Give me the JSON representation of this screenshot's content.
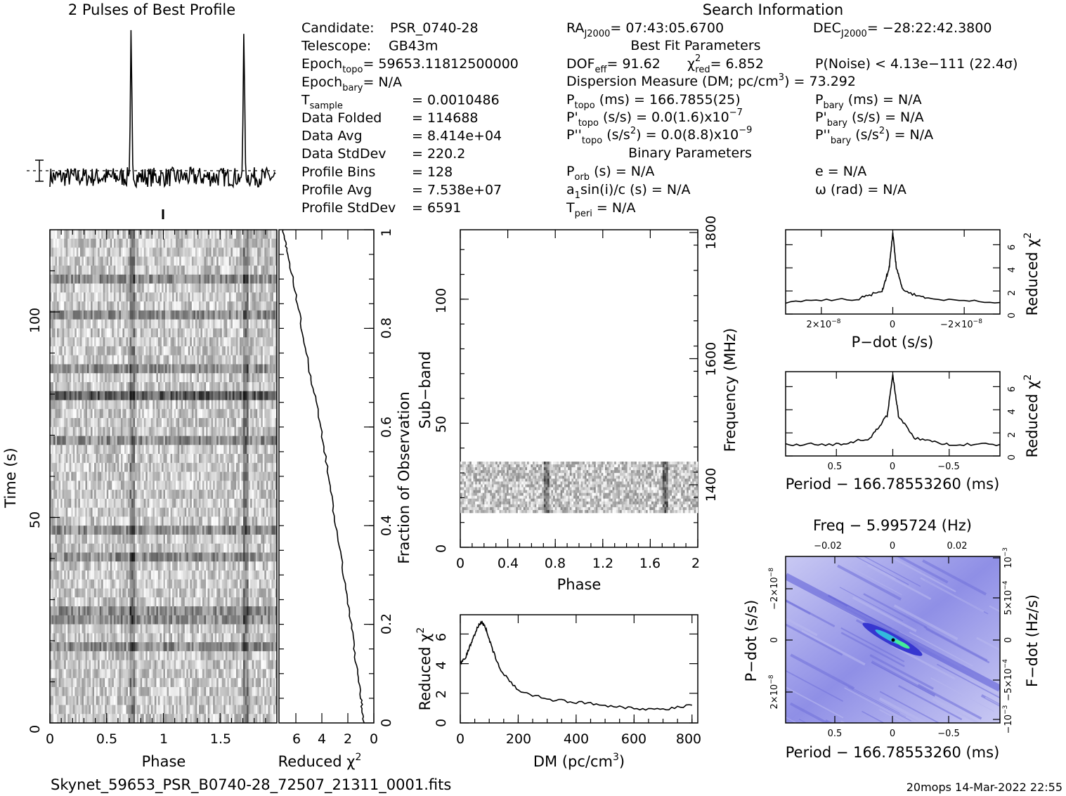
{
  "title_profile": "2 Pulses of Best Profile",
  "title_search": "Search Information",
  "footer_file": "Skynet_59653_PSR_B0740-28_72507_21311_0001.fits",
  "footer_stamp": "20mops 14-Mar-2022 22:55",
  "info_left": [
    {
      "k": "Candidate:",
      "v": "PSR_0740-28"
    },
    {
      "k": "Telescope:",
      "v": "GB43m"
    },
    {
      "k": "Epoch",
      "sub": "topo",
      "v": "= 59653.11812500000"
    },
    {
      "k": "Epoch",
      "sub": "bary",
      "v": "= N/A"
    },
    {
      "k": "T",
      "sub": "sample",
      "v": "=   0.0010486"
    },
    {
      "k": "Data Folded",
      "v": "=   114688"
    },
    {
      "k": "Data Avg",
      "v": "=   8.414e+04"
    },
    {
      "k": "Data StdDev",
      "v": "=   220.2"
    },
    {
      "k": "Profile Bins",
      "v": "=   128"
    },
    {
      "k": "Profile Avg",
      "v": "=   7.538e+07"
    },
    {
      "k": "Profile StdDev",
      "v": "=   6591"
    }
  ],
  "info_mid": {
    "ra": "= 07:43:05.6700",
    "best_fit_header": "Best Fit Parameters",
    "dof": "DOF",
    "dof_sub": "eff",
    "dof_val": "= 91.62",
    "chi": "χ",
    "chi_sub": "red",
    "chi_val": "= 6.852",
    "pnoise": "P(Noise) < 4.13e−111   (22.4σ)",
    "dm": "Dispersion Measure (DM; pc/cm",
    "dm_val": ") = 73.292",
    "ptopo_val": "(ms) =   166.7855(25)",
    "pdot_val": "(s/s) = 0.0(1.6)x10",
    "pdot_exp": "−7",
    "pddot_val": "(s/s",
    "pddot_val2": ") = 0.0(8.8)x10",
    "pddot_exp": "−9",
    "binary_header": "Binary Parameters",
    "porb": "(s) = N/A",
    "a1": "a",
    "a1_val": "sin(i)/c (s) = N/A",
    "tperi": "= N/A"
  },
  "info_right": {
    "dec": "= −28:22:42.3800",
    "pbary": "(ms) = N/A",
    "pbary_dot": "(s/s) = N/A",
    "pbary_ddot": "(s/s",
    "pbary_ddot2": ") = N/A",
    "e": "e = N/A",
    "omega": "ω (rad) = N/A"
  },
  "labels": {
    "time_s": "Time (s)",
    "phase": "Phase",
    "reduced": "Reduced χ",
    "fraction": "Fraction of Observation",
    "subband": "Sub−band",
    "frequency": "Frequency (MHz)",
    "dm_axis": "DM (pc/cm",
    "pdot_axis": "P−dot (s/s)",
    "period_axis": "Period − 166.78553260 (ms)",
    "freq_axis": "Freq − 5.995724 (Hz)",
    "fdot_axis": "F−dot (Hz/s)"
  },
  "ticks": {
    "time_y": [
      "0",
      "50",
      "100"
    ],
    "phase_x": [
      "0",
      "0.5",
      "1",
      "1.5"
    ],
    "chi_x": [
      "6",
      "4",
      "2",
      "0"
    ],
    "fraction_y": [
      "0",
      "0.2",
      "0.4",
      "0.6",
      "0.8",
      "1"
    ],
    "subband_y": [
      "0",
      "50",
      "100"
    ],
    "freq_y": [
      "1400",
      "1600",
      "1800"
    ],
    "subphase_x": [
      "0",
      "0.4",
      "0.8",
      "1.2",
      "1.6",
      "2"
    ],
    "dm_y": [
      "0",
      "2",
      "4",
      "6"
    ],
    "dm_x": [
      "0",
      "200",
      "400",
      "600",
      "800"
    ],
    "pdot_chi_y": [
      "0",
      "2",
      "4",
      "6"
    ],
    "pdot_x": [
      "2×10",
      "0",
      "−2×10"
    ],
    "period_x": [
      "0.5",
      "0",
      "−0.5"
    ],
    "freq_x": [
      "−0.02",
      "0",
      "0.02"
    ],
    "ppdot_y": [
      "−2×10",
      "0",
      "2×10"
    ],
    "fdot_y": [
      "10",
      "5×10",
      "0",
      "−5×10",
      "−10"
    ]
  },
  "chart_data": [
    {
      "type": "line",
      "title": "2 Pulses of Best Profile",
      "xlabel": "",
      "ylabel": "",
      "description_free": true,
      "x": [
        0.0,
        0.5,
        0.7,
        0.72,
        0.74,
        1.0,
        1.5,
        1.7,
        1.72,
        1.74,
        2.0
      ],
      "y": [
        0.05,
        0.05,
        0.1,
        1.0,
        0.1,
        0.05,
        0.05,
        0.1,
        1.0,
        0.1,
        0.05
      ],
      "ylim": [
        0,
        1
      ]
    },
    {
      "type": "line",
      "xlabel": "DM (pc/cm3)",
      "ylabel": "Reduced χ2",
      "x": [
        0,
        20,
        40,
        60,
        75,
        90,
        110,
        140,
        200,
        300,
        400,
        500,
        600,
        700,
        800
      ],
      "y": [
        4.0,
        4.5,
        5.5,
        6.5,
        6.8,
        6.3,
        5.0,
        3.5,
        2.2,
        1.6,
        1.4,
        1.2,
        1.0,
        0.9,
        1.2
      ],
      "xlim": [
        0,
        820
      ],
      "ylim": [
        0,
        7.3
      ]
    },
    {
      "type": "line",
      "xlabel": "P-dot (s/s)",
      "ylabel": "Reduced χ2",
      "x": [
        3e-08,
        1e-08,
        3e-09,
        1e-09,
        0,
        -1e-09,
        -3e-09,
        -1e-08,
        -3e-08
      ],
      "y": [
        1.0,
        1.3,
        2.0,
        4.0,
        7.0,
        4.0,
        2.0,
        1.3,
        1.0
      ],
      "xlim": [
        3e-08,
        -3e-08
      ],
      "ylim": [
        0,
        7.3
      ]
    },
    {
      "type": "line",
      "xlabel": "Period − 166.78553260 (ms)",
      "ylabel": "Reduced χ2",
      "x": [
        0.95,
        0.5,
        0.2,
        0.05,
        0,
        -0.05,
        -0.2,
        -0.5,
        -0.95
      ],
      "y": [
        1.0,
        1.0,
        1.5,
        3.5,
        7.0,
        3.5,
        1.5,
        1.0,
        1.0
      ],
      "xlim": [
        0.95,
        -0.95
      ],
      "ylim": [
        0,
        7.3
      ]
    },
    {
      "type": "line",
      "xlabel": "Reduced χ2",
      "ylabel": "Fraction of Observation",
      "x": [
        0.8,
        1.0,
        1.5,
        2.0,
        2.8,
        3.5,
        4.2,
        5.0,
        5.8,
        6.6,
        7.0
      ],
      "y": [
        0.0,
        0.05,
        0.15,
        0.25,
        0.38,
        0.5,
        0.62,
        0.72,
        0.84,
        0.95,
        1.0
      ],
      "xlim": [
        7.3,
        0
      ],
      "ylim": [
        0,
        1
      ]
    },
    {
      "type": "heatmap",
      "xlabel": "Phase",
      "ylabel": "Time (s)",
      "xlim": [
        0,
        2
      ],
      "ylim": [
        0,
        120
      ]
    },
    {
      "type": "heatmap",
      "xlabel": "Phase",
      "ylabel": "Sub−band",
      "xlim": [
        0,
        2
      ],
      "ylim": [
        0,
        128
      ]
    },
    {
      "type": "heatmap",
      "xlabel": "Period − 166.78553260 (ms)",
      "ylabel": "P−dot (s/s)"
    }
  ]
}
